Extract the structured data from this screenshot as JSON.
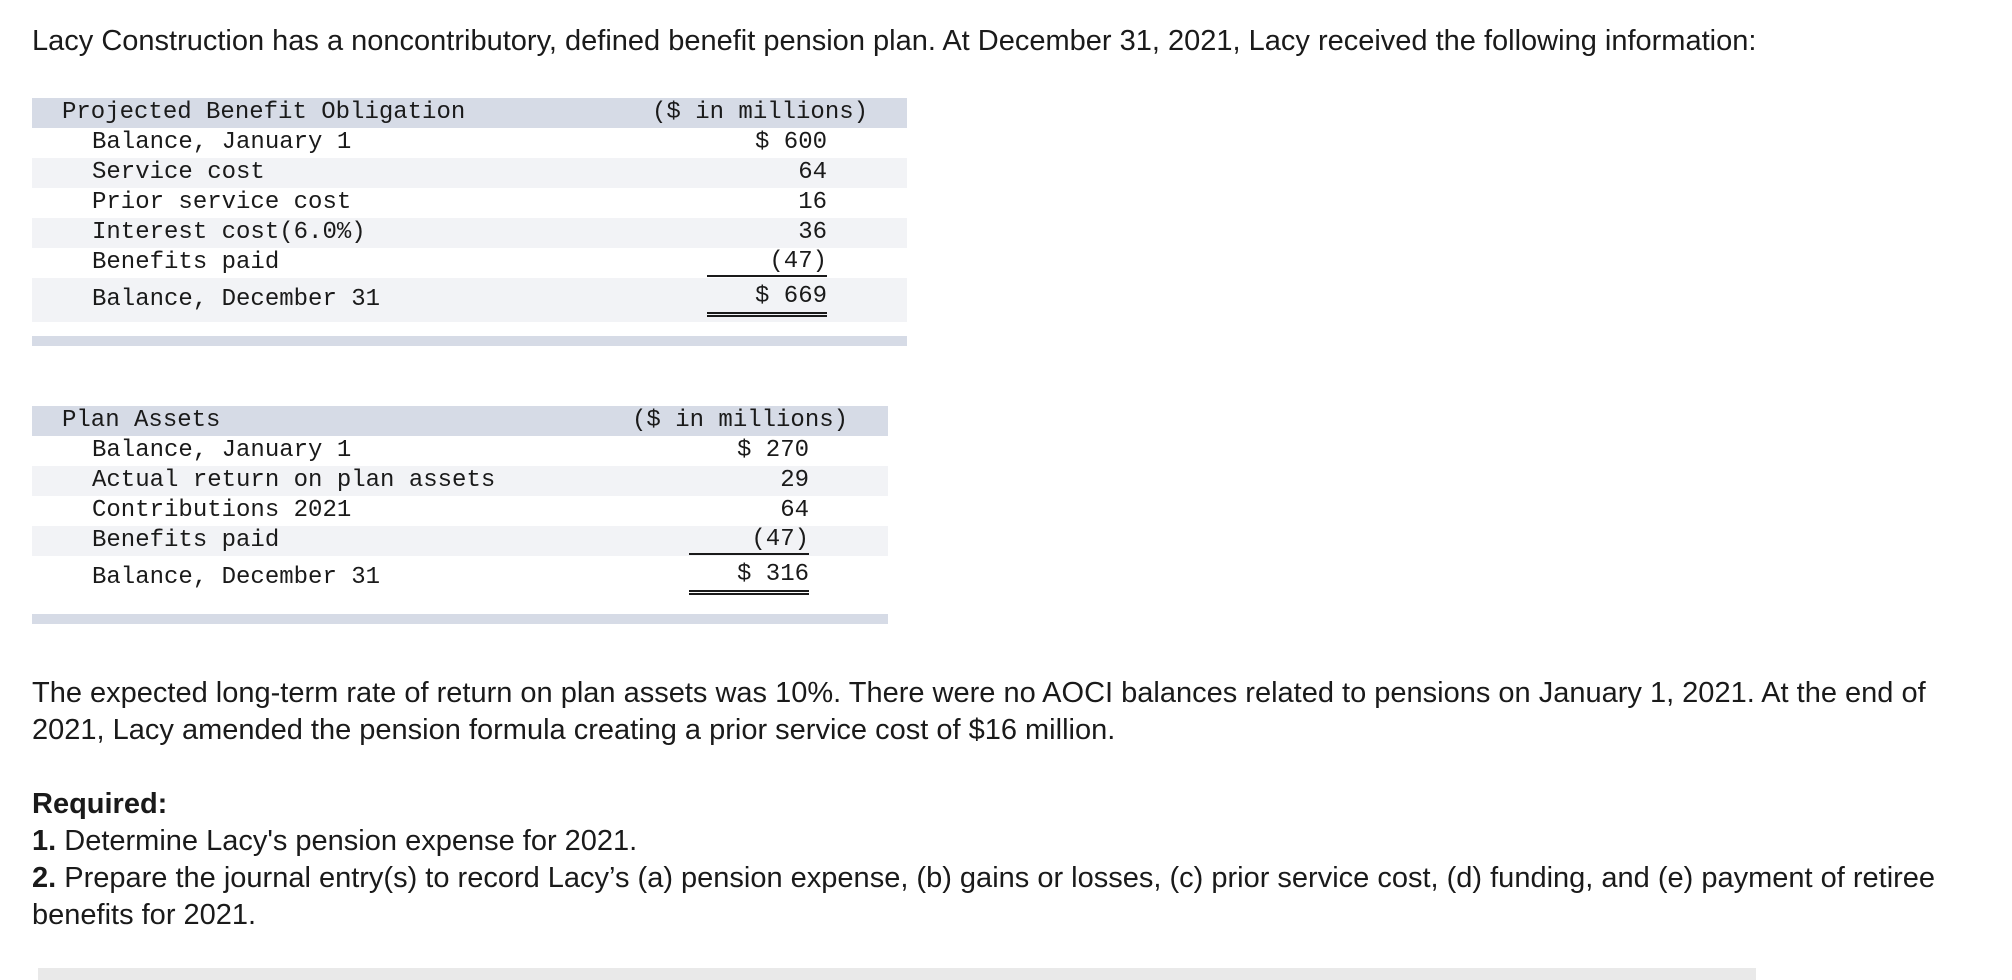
{
  "intro": "Lacy Construction has a noncontributory, defined benefit pension plan. At December 31, 2021, Lacy received the following information:",
  "pbo_table": {
    "title": "Projected Benefit Obligation",
    "unit": "($ in millions)",
    "rows": [
      {
        "label": "Balance, January 1",
        "value": "$ 600"
      },
      {
        "label": "Service cost",
        "value": "64"
      },
      {
        "label": "Prior service cost",
        "value": "16"
      },
      {
        "label": "Interest cost(6.0%)",
        "value": "36"
      },
      {
        "label": "Benefits paid",
        "value": "(47)"
      }
    ],
    "total": {
      "label": "Balance, December 31",
      "value": "$ 669"
    }
  },
  "plan_assets_table": {
    "title": "Plan Assets",
    "unit": "($ in millions)",
    "rows": [
      {
        "label": "Balance, January 1",
        "value": "$ 270"
      },
      {
        "label": "Actual return on plan assets",
        "value": "29"
      },
      {
        "label": "Contributions 2021",
        "value": "64"
      },
      {
        "label": "Benefits paid",
        "value": "(47)"
      }
    ],
    "total": {
      "label": "Balance, December 31",
      "value": "$ 316"
    }
  },
  "paragraph": "The expected long-term rate of return on plan assets was 10%. There were no AOCI balances related to pensions on January 1, 2021. At the end of 2021, Lacy amended the pension formula creating a prior service cost of $16 million.",
  "required": {
    "title": "Required:",
    "items": [
      {
        "num": "1.",
        "text": " Determine Lacy's pension expense for 2021."
      },
      {
        "num": "2.",
        "text": " Prepare the journal entry(s) to record Lacy’s (a) pension expense, (b) gains or losses, (c) prior service cost, (d) funding, and (e) payment of retiree benefits for 2021."
      }
    ]
  }
}
